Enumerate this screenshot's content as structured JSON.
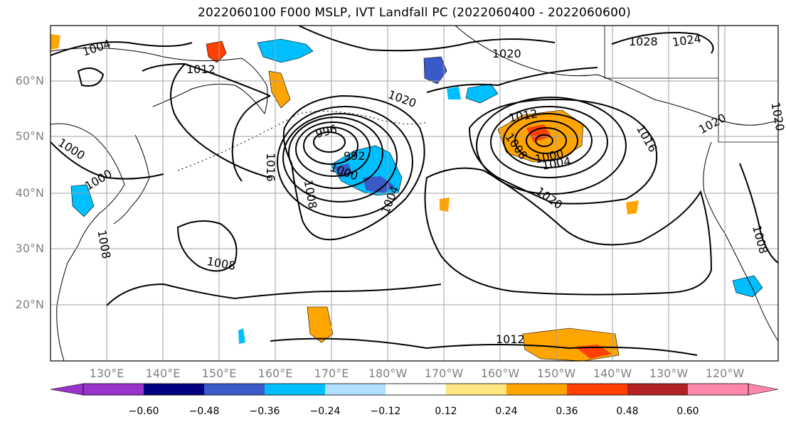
{
  "title": "2022060100 F000 MSLP, IVT Landfall PC (2022060400 - 2022060600)",
  "latitude_labels": [
    "60°N",
    "50°N",
    "40°N",
    "30°N",
    "20°N"
  ],
  "longitude_labels": [
    "130°E",
    "140°E",
    "150°E",
    "160°E",
    "170°E",
    "180°W",
    "170°W",
    "160°W",
    "150°W",
    "140°W",
    "130°W",
    "120°W"
  ],
  "colorbar": {
    "tick_labels": [
      "-0.60",
      "-0.48",
      "-0.36",
      "-0.24",
      "-0.12",
      "0.12",
      "0.24",
      "0.36",
      "0.48",
      "0.60"
    ],
    "colors": [
      "#9933cc",
      "#000080",
      "#3a5bc7",
      "#00bfff",
      "#b0e0ff",
      "#ffffff",
      "#ffe680",
      "#ffa500",
      "#ff4000",
      "#b22222",
      "#ff88aa"
    ]
  },
  "contour_labels": [
    {
      "text": "1004",
      "region": "northwest"
    },
    {
      "text": "1012",
      "region": "northwest"
    },
    {
      "text": "1000",
      "region": "west"
    },
    {
      "text": "1000",
      "region": "west-japan"
    },
    {
      "text": "1008",
      "region": "west-japan"
    },
    {
      "text": "996",
      "region": "low-center-west"
    },
    {
      "text": "992",
      "region": "low-center-west"
    },
    {
      "text": "1000",
      "region": "low-center-west"
    },
    {
      "text": "1016",
      "region": "low-center-west"
    },
    {
      "text": "1008",
      "region": "low-center-west"
    },
    {
      "text": "1004",
      "region": "low-center-west"
    },
    {
      "text": "1020",
      "region": "north-central"
    },
    {
      "text": "1020",
      "region": "alaska"
    },
    {
      "text": "1008",
      "region": "southwest"
    },
    {
      "text": "1012",
      "region": "low-center-east"
    },
    {
      "text": "1008",
      "region": "low-center-east"
    },
    {
      "text": "1000",
      "region": "low-center-east"
    },
    {
      "text": "1004",
      "region": "low-center-east"
    },
    {
      "text": "1016",
      "region": "low-center-east"
    },
    {
      "text": "1020",
      "region": "east"
    },
    {
      "text": "1028",
      "region": "canada"
    },
    {
      "text": "1024",
      "region": "canada"
    },
    {
      "text": "1020",
      "region": "canada"
    },
    {
      "text": "1020",
      "region": "east-edge"
    },
    {
      "text": "1008",
      "region": "california"
    },
    {
      "text": "1012",
      "region": "south"
    }
  ]
}
